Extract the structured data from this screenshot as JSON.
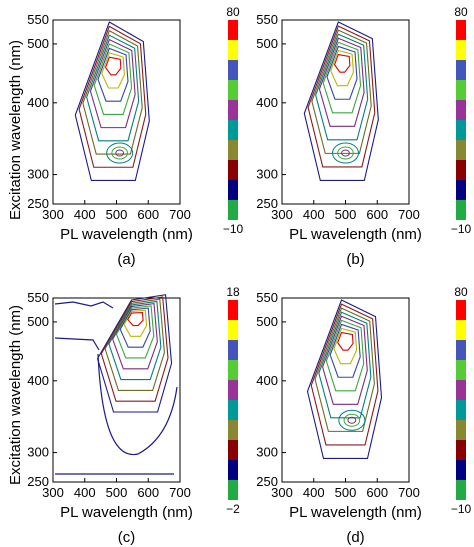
{
  "figure": {
    "ylabel": "Excitation wavelength (nm)"
  },
  "chart_data": [
    {
      "type": "heatmap",
      "panel_label": "(a)",
      "xlabel": "PL wavelength (nm)",
      "xlim": [
        300,
        700
      ],
      "ylim": [
        250,
        550
      ],
      "x_ticks": [
        "300",
        "400",
        "500",
        "600",
        "700"
      ],
      "y_ticks": [
        "250",
        "300",
        "400",
        "500",
        "550"
      ],
      "colorbar": {
        "max": "80",
        "min": "−10",
        "colors": [
          "#ff0000",
          "#ffff00",
          "#4455bb",
          "#55cc33",
          "#993399",
          "#009999",
          "#888833",
          "#880000",
          "#000080",
          "#22aa44"
        ]
      },
      "contour_center": {
        "x": 490,
        "y": 470
      },
      "secondary_center": {
        "x": 510,
        "y": 330
      },
      "background_noise": false
    },
    {
      "type": "heatmap",
      "panel_label": "(b)",
      "xlabel": "PL wavelength (nm)",
      "xlim": [
        300,
        700
      ],
      "ylim": [
        250,
        550
      ],
      "x_ticks": [
        "300",
        "400",
        "500",
        "600",
        "700"
      ],
      "y_ticks": [
        "250",
        "300",
        "400",
        "500",
        "550"
      ],
      "colorbar": {
        "max": "80",
        "min": "−10",
        "colors": [
          "#ff0000",
          "#ffff00",
          "#4455bb",
          "#55cc33",
          "#993399",
          "#009999",
          "#888833",
          "#880000",
          "#000080",
          "#22aa44"
        ]
      },
      "contour_center": {
        "x": 490,
        "y": 475
      },
      "secondary_center": {
        "x": 500,
        "y": 330
      },
      "background_noise": false
    },
    {
      "type": "heatmap",
      "panel_label": "(c)",
      "xlabel": "PL wavelength (nm)",
      "xlim": [
        300,
        700
      ],
      "ylim": [
        250,
        550
      ],
      "x_ticks": [
        "300",
        "400",
        "500",
        "600",
        "700"
      ],
      "y_ticks": [
        "250",
        "300",
        "400",
        "500",
        "550"
      ],
      "colorbar": {
        "max": "18",
        "min": "−2",
        "colors": [
          "#ff0000",
          "#ffff00",
          "#4455bb",
          "#55cc33",
          "#993399",
          "#009999",
          "#888833",
          "#880000",
          "#000080",
          "#22aa44"
        ]
      },
      "contour_center": {
        "x": 560,
        "y": 515
      },
      "secondary_center": null,
      "background_noise": true
    },
    {
      "type": "heatmap",
      "panel_label": "(d)",
      "xlabel": "PL wavelength (nm)",
      "xlim": [
        300,
        700
      ],
      "ylim": [
        250,
        550
      ],
      "x_ticks": [
        "300",
        "400",
        "500",
        "600",
        "700"
      ],
      "y_ticks": [
        "250",
        "300",
        "400",
        "500",
        "550"
      ],
      "colorbar": {
        "max": "80",
        "min": "−10",
        "colors": [
          "#ff0000",
          "#ffff00",
          "#4455bb",
          "#55cc33",
          "#993399",
          "#009999",
          "#888833",
          "#880000",
          "#000080",
          "#22aa44"
        ]
      },
      "contour_center": {
        "x": 500,
        "y": 475
      },
      "secondary_center": {
        "x": 520,
        "y": 345
      },
      "background_noise": false
    }
  ]
}
